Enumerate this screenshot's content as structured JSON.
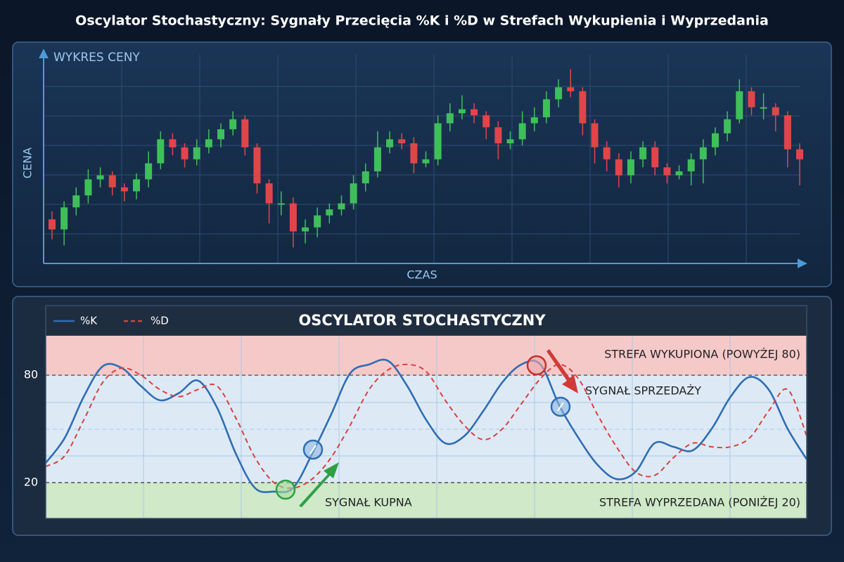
{
  "title": "Oscylator Stochastyczny: Sygnały Przecięcia %K i %D w Strefach Wykupienia i Wyprzedania",
  "chart_data": [
    {
      "type": "candlestick",
      "title": "WYKRES CENY",
      "y_label": "CENA",
      "x_label": "CZAS",
      "ylim": [
        0,
        100
      ],
      "grid": true,
      "up_color": "#3fbf5a",
      "down_color": "#e0454a",
      "open": [
        22,
        17,
        28,
        34,
        42,
        44,
        38,
        36,
        42,
        50,
        62,
        58,
        52,
        58,
        62,
        67,
        72,
        58,
        40,
        30,
        30,
        16,
        18,
        24,
        27,
        30,
        40,
        46,
        58,
        62,
        60,
        50,
        52,
        70,
        75,
        77,
        74,
        68,
        60,
        62,
        70,
        73,
        82,
        88,
        86,
        70,
        58,
        52,
        44,
        52,
        58,
        48,
        44,
        46,
        52,
        58,
        65,
        72,
        86,
        78,
        78,
        74,
        57
      ],
      "close": [
        17,
        28,
        34,
        42,
        44,
        38,
        36,
        42,
        50,
        62,
        58,
        52,
        58,
        62,
        67,
        72,
        58,
        40,
        30,
        30,
        16,
        18,
        24,
        27,
        30,
        40,
        46,
        58,
        62,
        60,
        50,
        52,
        70,
        75,
        77,
        74,
        68,
        60,
        62,
        70,
        73,
        82,
        88,
        86,
        70,
        58,
        52,
        44,
        52,
        58,
        48,
        44,
        46,
        52,
        58,
        65,
        72,
        86,
        78,
        78,
        74,
        57,
        52
      ],
      "high": [
        26,
        31,
        38,
        47,
        48,
        46,
        40,
        45,
        56,
        66,
        65,
        60,
        62,
        67,
        70,
        76,
        74,
        60,
        42,
        36,
        33,
        22,
        28,
        30,
        34,
        44,
        50,
        66,
        66,
        65,
        63,
        56,
        74,
        80,
        84,
        80,
        76,
        71,
        66,
        76,
        78,
        86,
        92,
        97,
        88,
        72,
        61,
        55,
        56,
        61,
        61,
        50,
        49,
        55,
        62,
        68,
        76,
        92,
        88,
        85,
        80,
        76,
        60
      ],
      "low": [
        12,
        9,
        24,
        30,
        38,
        34,
        31,
        32,
        38,
        47,
        54,
        48,
        49,
        55,
        58,
        64,
        54,
        35,
        20,
        24,
        8,
        10,
        13,
        20,
        24,
        27,
        36,
        43,
        55,
        57,
        45,
        48,
        49,
        66,
        72,
        70,
        62,
        52,
        57,
        59,
        66,
        70,
        78,
        83,
        64,
        50,
        46,
        38,
        40,
        48,
        44,
        40,
        42,
        39,
        40,
        54,
        61,
        70,
        74,
        72,
        66,
        48,
        39
      ]
    },
    {
      "type": "line",
      "title": "OSCYLATOR STOCHASTYCZNY",
      "x": [
        0,
        1,
        2,
        3,
        4,
        5,
        6,
        7,
        8,
        9,
        10,
        11,
        12,
        13,
        14,
        15,
        16,
        17,
        18,
        19,
        20,
        21,
        22,
        23,
        24,
        25,
        26,
        27,
        28,
        29,
        30,
        31,
        32,
        33,
        34,
        35,
        36,
        37,
        38,
        39,
        40
      ],
      "xlim": [
        0,
        40
      ],
      "ylim": [
        0,
        102
      ],
      "yticks": [
        20,
        80
      ],
      "series": [
        {
          "name": "%K",
          "color": "#2f6db5",
          "dash": false,
          "values": [
            31,
            45,
            68,
            85,
            84,
            74,
            66,
            70,
            77,
            62,
            36,
            17,
            15,
            17,
            36,
            58,
            81,
            86,
            88,
            74,
            55,
            42,
            46,
            60,
            76,
            86,
            86,
            63,
            45,
            30,
            22,
            26,
            42,
            40,
            38,
            50,
            68,
            79,
            72,
            50,
            33
          ]
        },
        {
          "name": "%D",
          "color": "#d9403e",
          "dash": true,
          "values": [
            29,
            35,
            55,
            76,
            84,
            80,
            72,
            68,
            72,
            74,
            56,
            34,
            20,
            17,
            22,
            34,
            52,
            72,
            83,
            86,
            82,
            66,
            52,
            44,
            50,
            64,
            78,
            86,
            78,
            58,
            40,
            26,
            24,
            34,
            42,
            40,
            40,
            45,
            60,
            72,
            46
          ]
        }
      ],
      "annotations": [
        "STREFA WYKUPIONA (POWYŻEJ 80)",
        "SYGNAŁ SPRZEDAŻY",
        "SYGNAŁ KUPNA",
        "STREFA WYPRZEDANA (PONIŻEJ 20)"
      ]
    }
  ]
}
